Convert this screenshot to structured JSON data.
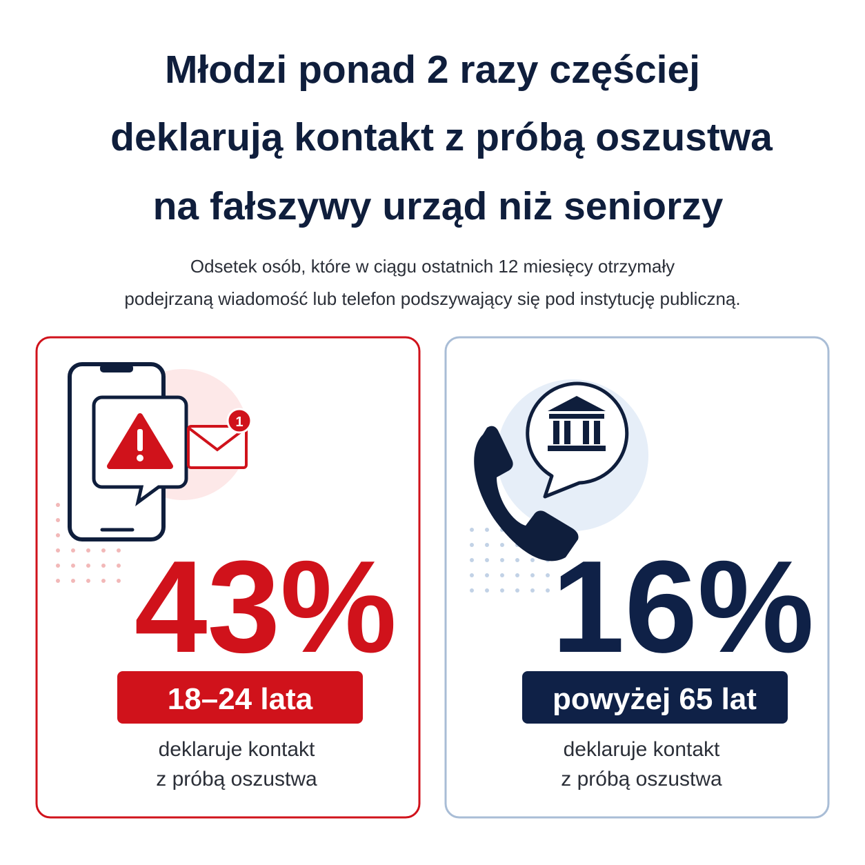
{
  "title": [
    "Młodzi ponad 2 razy częściej",
    "deklarują kontakt z próbą oszustwa",
    "na fałszywy urząd niż seniorzy"
  ],
  "subtitle": [
    "Odsetek osób, które w ciągu ostatnich 12 miesięcy otrzymały",
    "podejrzaną wiadomość lub telefon podszywający się pod instytucję publiczną."
  ],
  "cards": [
    {
      "icon_badge": "1",
      "stat": "43%",
      "group": "18–24 lata",
      "caption": [
        "deklaruje kontakt",
        "z próbą oszustwa"
      ]
    },
    {
      "stat": "16%",
      "group": "powyżej 65 lat",
      "caption": [
        "deklaruje kontakt",
        "z próbą oszustwa"
      ]
    }
  ]
}
